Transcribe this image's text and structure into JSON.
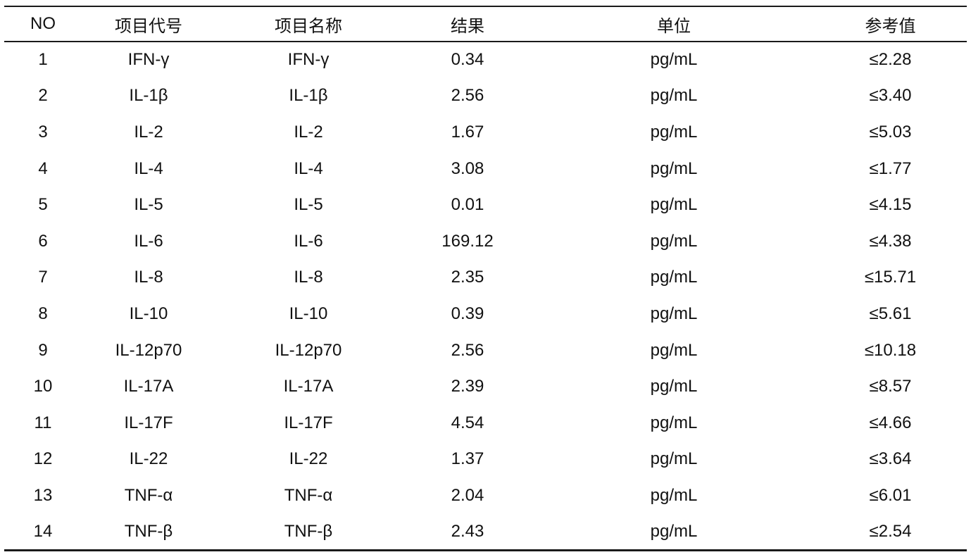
{
  "table": {
    "columns": [
      {
        "key": "no",
        "label": "NO"
      },
      {
        "key": "code",
        "label": "项目代号"
      },
      {
        "key": "name",
        "label": "项目名称"
      },
      {
        "key": "result",
        "label": "结果"
      },
      {
        "key": "unit",
        "label": "单位"
      },
      {
        "key": "ref",
        "label": "参考值"
      }
    ],
    "rows": [
      {
        "no": "1",
        "code": "IFN-γ",
        "name": "IFN-γ",
        "result": "0.34",
        "unit": "pg/mL",
        "ref": "≤2.28"
      },
      {
        "no": "2",
        "code": "IL-1β",
        "name": "IL-1β",
        "result": "2.56",
        "unit": "pg/mL",
        "ref": "≤3.40"
      },
      {
        "no": "3",
        "code": "IL-2",
        "name": "IL-2",
        "result": "1.67",
        "unit": "pg/mL",
        "ref": "≤5.03"
      },
      {
        "no": "4",
        "code": "IL-4",
        "name": "IL-4",
        "result": "3.08",
        "unit": "pg/mL",
        "ref": "≤1.77"
      },
      {
        "no": "5",
        "code": "IL-5",
        "name": "IL-5",
        "result": "0.01",
        "unit": "pg/mL",
        "ref": "≤4.15"
      },
      {
        "no": "6",
        "code": "IL-6",
        "name": "IL-6",
        "result": "169.12",
        "unit": "pg/mL",
        "ref": "≤4.38"
      },
      {
        "no": "7",
        "code": "IL-8",
        "name": "IL-8",
        "result": "2.35",
        "unit": "pg/mL",
        "ref": "≤15.71"
      },
      {
        "no": "8",
        "code": "IL-10",
        "name": "IL-10",
        "result": "0.39",
        "unit": "pg/mL",
        "ref": "≤5.61"
      },
      {
        "no": "9",
        "code": "IL-12p70",
        "name": "IL-12p70",
        "result": "2.56",
        "unit": "pg/mL",
        "ref": "≤10.18"
      },
      {
        "no": "10",
        "code": "IL-17A",
        "name": "IL-17A",
        "result": "2.39",
        "unit": "pg/mL",
        "ref": "≤8.57"
      },
      {
        "no": "11",
        "code": "IL-17F",
        "name": "IL-17F",
        "result": "4.54",
        "unit": "pg/mL",
        "ref": "≤4.66"
      },
      {
        "no": "12",
        "code": "IL-22",
        "name": "IL-22",
        "result": "1.37",
        "unit": "pg/mL",
        "ref": "≤3.64"
      },
      {
        "no": "13",
        "code": "TNF-α",
        "name": "TNF-α",
        "result": "2.04",
        "unit": "pg/mL",
        "ref": "≤6.01"
      },
      {
        "no": "14",
        "code": "TNF-β",
        "name": "TNF-β",
        "result": "2.43",
        "unit": "pg/mL",
        "ref": "≤2.54"
      }
    ]
  },
  "colors": {
    "text": "#111111",
    "border": "#1a1a1a",
    "background": "#ffffff"
  }
}
